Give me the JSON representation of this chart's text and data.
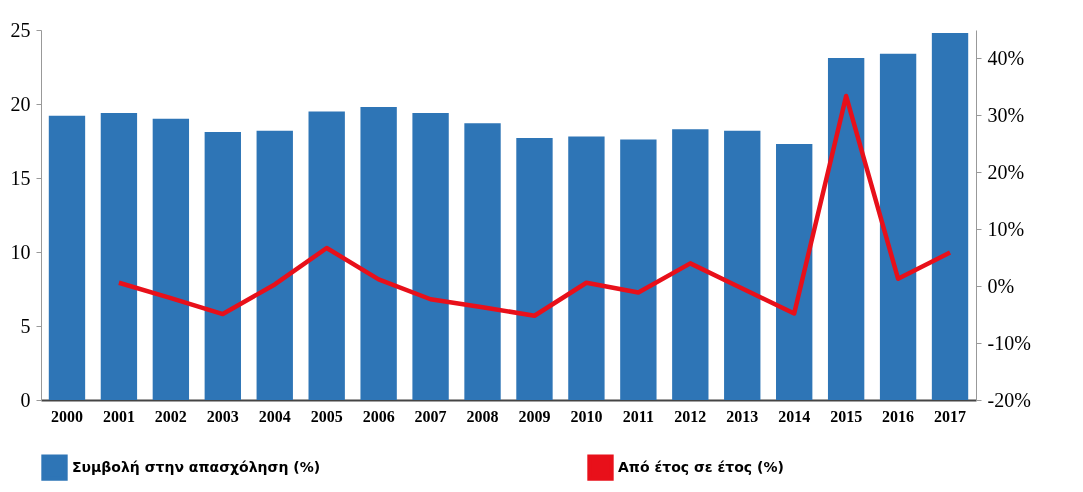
{
  "chart_data": {
    "type": "bar",
    "categories": [
      "2000",
      "2001",
      "2002",
      "2003",
      "2004",
      "2005",
      "2006",
      "2007",
      "2008",
      "2009",
      "2010",
      "2011",
      "2012",
      "2013",
      "2014",
      "2015",
      "2016",
      "2017"
    ],
    "series": [
      {
        "name": "Συμβολή στην απασχόληση (%)",
        "color": "#2e75b6",
        "values": [
          19.2,
          19.4,
          19.0,
          18.1,
          18.2,
          19.5,
          19.8,
          19.4,
          18.7,
          17.7,
          17.8,
          17.6,
          18.3,
          18.2,
          17.3,
          23.1,
          23.4,
          24.8
        ]
      },
      {
        "name": "Από έτος σε έτος (%)",
        "type": "line",
        "axis": "y2",
        "color": "#e8101a",
        "values": [
          null,
          0.6,
          -2.1,
          -4.9,
          0.3,
          6.7,
          1.2,
          -2.3,
          -3.7,
          -5.2,
          0.6,
          -1.1,
          4.0,
          -0.4,
          -4.8,
          33.4,
          1.3,
          5.9
        ]
      }
    ],
    "ylim": [
      0,
      25
    ],
    "yticks": [
      0,
      5,
      10,
      15,
      20,
      25
    ],
    "y2lim": [
      -20,
      45
    ],
    "y2ticks": [
      {
        "value": -20,
        "label": "-20%"
      },
      {
        "value": -10,
        "label": "-10%"
      },
      {
        "value": 0,
        "label": "0%"
      },
      {
        "value": 10,
        "label": "10%"
      },
      {
        "value": 20,
        "label": "20%"
      },
      {
        "value": 30,
        "label": "30%"
      },
      {
        "value": 40,
        "label": "40%"
      }
    ],
    "grid": false,
    "legend": "bottom",
    "marker": "none",
    "line_style": "solid"
  }
}
